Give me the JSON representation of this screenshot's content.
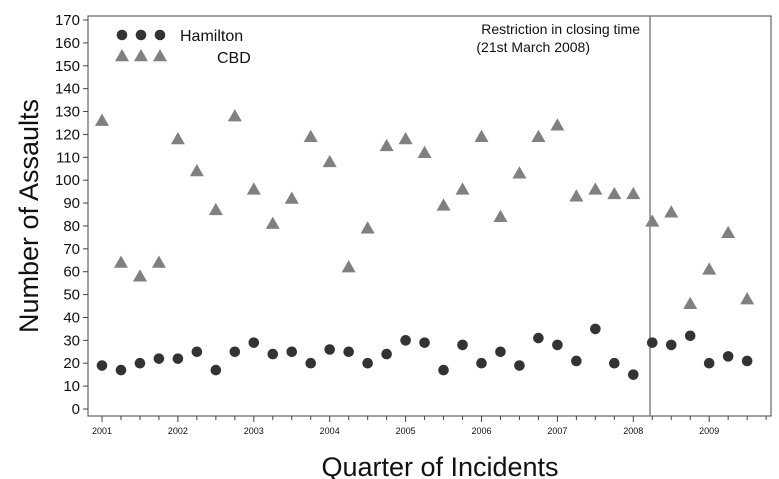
{
  "chart_data": {
    "type": "scatter",
    "xlabel": "Quarter of Incidents",
    "ylabel": "Number of Assaults",
    "ylim": [
      0,
      170
    ],
    "yticks": [
      0,
      10,
      20,
      30,
      40,
      50,
      60,
      70,
      80,
      90,
      100,
      110,
      120,
      130,
      140,
      150,
      160,
      170
    ],
    "xticks": [
      "2001",
      "2002",
      "2003",
      "2004",
      "2005",
      "2006",
      "2007",
      "2008",
      "2009"
    ],
    "xlim": [
      2001.0,
      2009.88
    ],
    "annotation": {
      "lines": [
        "Restriction in closing time",
        "(21st March 2008)"
      ],
      "x": 2008.22
    },
    "legend_position": "top-left",
    "series": [
      {
        "name": "Hamilton",
        "marker": "circle",
        "color": "#333333",
        "x": [
          2001.0,
          2001.25,
          2001.5,
          2001.75,
          2002.0,
          2002.25,
          2002.5,
          2002.75,
          2003.0,
          2003.25,
          2003.5,
          2003.75,
          2004.0,
          2004.25,
          2004.5,
          2004.75,
          2005.0,
          2005.25,
          2005.5,
          2005.75,
          2006.0,
          2006.25,
          2006.5,
          2006.75,
          2007.0,
          2007.25,
          2007.5,
          2007.75,
          2008.0,
          2008.25,
          2008.5,
          2008.75,
          2009.0,
          2009.25,
          2009.5
        ],
        "y": [
          19,
          17,
          20,
          22,
          22,
          25,
          17,
          25,
          29,
          24,
          25,
          20,
          26,
          25,
          20,
          24,
          30,
          29,
          17,
          28,
          20,
          25,
          19,
          31,
          28,
          21,
          35,
          20,
          15,
          29,
          28,
          32,
          20,
          23,
          21
        ]
      },
      {
        "name": "CBD",
        "marker": "triangle",
        "color": "#808080",
        "x": [
          2001.0,
          2001.25,
          2001.5,
          2001.75,
          2002.0,
          2002.25,
          2002.5,
          2002.75,
          2003.0,
          2003.25,
          2003.5,
          2003.75,
          2004.0,
          2004.25,
          2004.5,
          2004.75,
          2005.0,
          2005.25,
          2005.5,
          2005.75,
          2006.0,
          2006.25,
          2006.5,
          2006.75,
          2007.0,
          2007.25,
          2007.5,
          2007.75,
          2008.0,
          2008.25,
          2008.5,
          2008.75,
          2009.0,
          2009.25,
          2009.5
        ],
        "y": [
          126,
          64,
          58,
          64,
          118,
          104,
          87,
          128,
          96,
          81,
          92,
          119,
          108,
          62,
          79,
          115,
          118,
          112,
          89,
          96,
          119,
          84,
          103,
          119,
          124,
          93,
          96,
          94,
          94,
          82,
          86,
          46,
          61,
          77,
          48
        ]
      }
    ]
  }
}
